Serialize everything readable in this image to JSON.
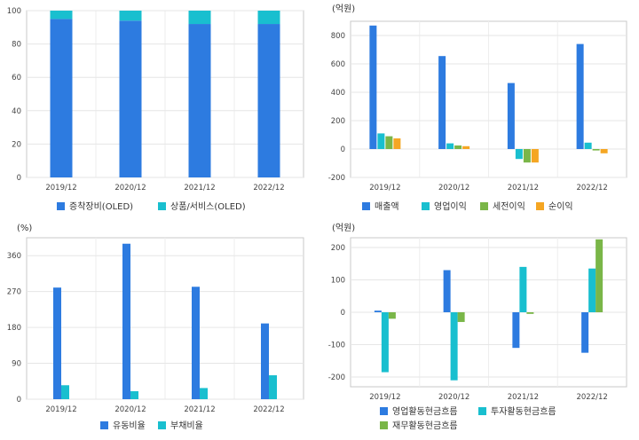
{
  "chart_data": [
    {
      "type": "bar",
      "stacked": true,
      "categories": [
        "2019/12",
        "2020/12",
        "2021/12",
        "2022/12"
      ],
      "series": [
        {
          "name": "증착장비(OLED)",
          "color": "#2d7be0",
          "values": [
            95,
            94,
            92,
            92
          ]
        },
        {
          "name": "상품/서비스(OLED)",
          "color": "#19bfcf",
          "values": [
            5,
            6,
            8,
            8
          ]
        }
      ],
      "ylim": [
        0,
        100
      ],
      "yticks": [
        0,
        20,
        40,
        60,
        80,
        100
      ],
      "unit_label": "",
      "legend_position": "bottom",
      "grid": true
    },
    {
      "type": "bar",
      "categories": [
        "2019/12",
        "2020/12",
        "2021/12",
        "2022/12"
      ],
      "series": [
        {
          "name": "매출액",
          "color": "#2d7be0",
          "values": [
            870,
            655,
            465,
            740
          ]
        },
        {
          "name": "영업이익",
          "color": "#19bfcf",
          "values": [
            110,
            40,
            -70,
            45
          ]
        },
        {
          "name": "세전이익",
          "color": "#7ab648",
          "values": [
            90,
            25,
            -95,
            -10
          ]
        },
        {
          "name": "순이익",
          "color": "#f5a623",
          "values": [
            75,
            20,
            -95,
            -30
          ]
        }
      ],
      "ylim": [
        -200,
        900
      ],
      "yticks": [
        -200,
        0,
        200,
        400,
        600,
        800
      ],
      "unit_label": "(억원)",
      "legend_position": "bottom",
      "grid": true
    },
    {
      "type": "bar",
      "categories": [
        "2019/12",
        "2020/12",
        "2021/12",
        "2022/12"
      ],
      "series": [
        {
          "name": "유동비율",
          "color": "#2d7be0",
          "values": [
            280,
            390,
            282,
            190
          ]
        },
        {
          "name": "부채비율",
          "color": "#19bfcf",
          "values": [
            35,
            20,
            28,
            60
          ]
        }
      ],
      "ylim": [
        0,
        405
      ],
      "yticks": [
        0,
        90,
        180,
        270,
        360
      ],
      "unit_label": "(%)",
      "legend_position": "bottom",
      "grid": true
    },
    {
      "type": "bar",
      "categories": [
        "2019/12",
        "2020/12",
        "2021/12",
        "2022/12"
      ],
      "series": [
        {
          "name": "영업활동현금흐름",
          "color": "#2d7be0",
          "values": [
            5,
            130,
            -110,
            -125
          ]
        },
        {
          "name": "투자활동현금흐름",
          "color": "#19bfcf",
          "values": [
            -185,
            -210,
            140,
            135
          ]
        },
        {
          "name": "재무활동현금흐름",
          "color": "#7ab648",
          "values": [
            -20,
            -30,
            -5,
            225
          ]
        }
      ],
      "ylim": [
        -230,
        230
      ],
      "yticks": [
        -200,
        -100,
        0,
        100,
        200
      ],
      "unit_label": "(억원)",
      "legend_position": "bottom",
      "grid": true
    }
  ]
}
